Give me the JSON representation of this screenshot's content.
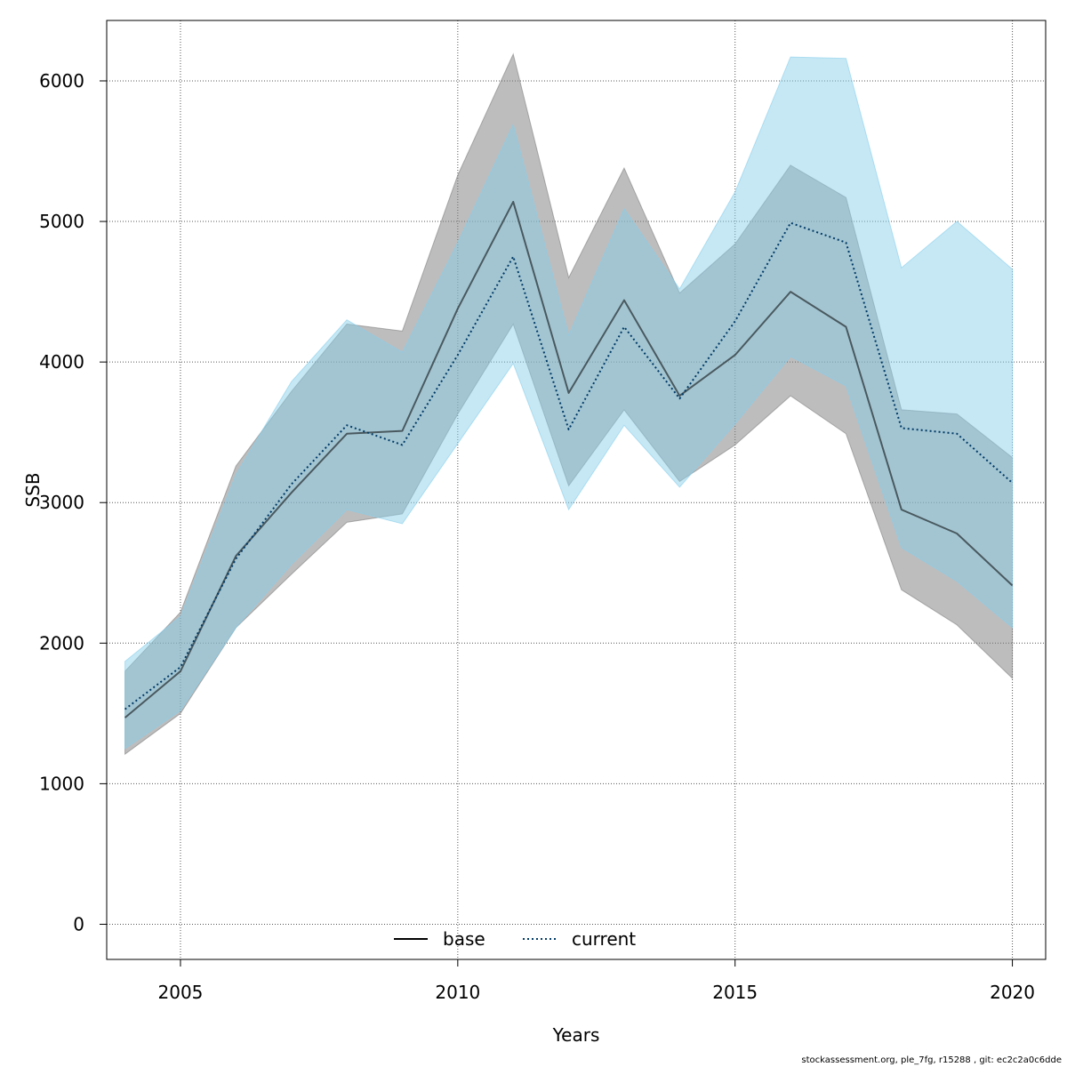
{
  "chart_data": {
    "type": "line",
    "xlabel": "Years",
    "ylabel": "SSB",
    "xlim": [
      2003.67,
      2020.6
    ],
    "ylim": [
      -250,
      6430
    ],
    "xticks": [
      2005,
      2010,
      2015,
      2020
    ],
    "yticks": [
      0,
      1000,
      2000,
      3000,
      4000,
      5000,
      6000
    ],
    "xtick_labels": [
      "2005",
      "2010",
      "2015",
      "2020"
    ],
    "ytick_labels": [
      "0",
      "1000",
      "2000",
      "3000",
      "4000",
      "5000",
      "6000"
    ],
    "grid": true,
    "legend_position": "bottom-center",
    "x": [
      2004,
      2005,
      2006,
      2007,
      2008,
      2009,
      2010,
      2011,
      2012,
      2013,
      2014,
      2015,
      2016,
      2017,
      2018,
      2019,
      2020
    ],
    "series": [
      {
        "name": "base",
        "line_style": "solid",
        "line_color": "#000000",
        "band_color": "#808080",
        "values": [
          1470,
          1800,
          2620,
          3070,
          3490,
          3510,
          4380,
          5140,
          3780,
          4440,
          3760,
          4050,
          4500,
          4250,
          2950,
          2780,
          2410
        ],
        "lower": [
          1210,
          1500,
          2110,
          2490,
          2860,
          2920,
          3630,
          4270,
          3120,
          3660,
          3150,
          3410,
          3760,
          3490,
          2380,
          2130,
          1750
        ],
        "upper": [
          1800,
          2220,
          3260,
          3790,
          4270,
          4220,
          5330,
          6190,
          4600,
          5380,
          4490,
          4840,
          5400,
          5170,
          3660,
          3630,
          3320
        ]
      },
      {
        "name": "current",
        "line_style": "dotted",
        "line_color": "#003a66",
        "band_color": "#87ceeb",
        "values": [
          1530,
          1830,
          2600,
          3130,
          3550,
          3410,
          4050,
          4750,
          3520,
          4250,
          3740,
          4290,
          4990,
          4850,
          3530,
          3490,
          3140
        ],
        "lower": [
          1250,
          1520,
          2110,
          2560,
          2950,
          2850,
          3420,
          3990,
          2950,
          3550,
          3110,
          3560,
          4040,
          3830,
          2680,
          2440,
          2110
        ],
        "upper": [
          1870,
          2190,
          3200,
          3860,
          4300,
          4070,
          4850,
          5690,
          4190,
          5090,
          4520,
          5210,
          6170,
          6160,
          4670,
          5000,
          4660
        ]
      }
    ]
  },
  "footer": {
    "note": "stockassessment.org, ple_7fg, r15288 , git: ec2c2a0c6dde"
  }
}
